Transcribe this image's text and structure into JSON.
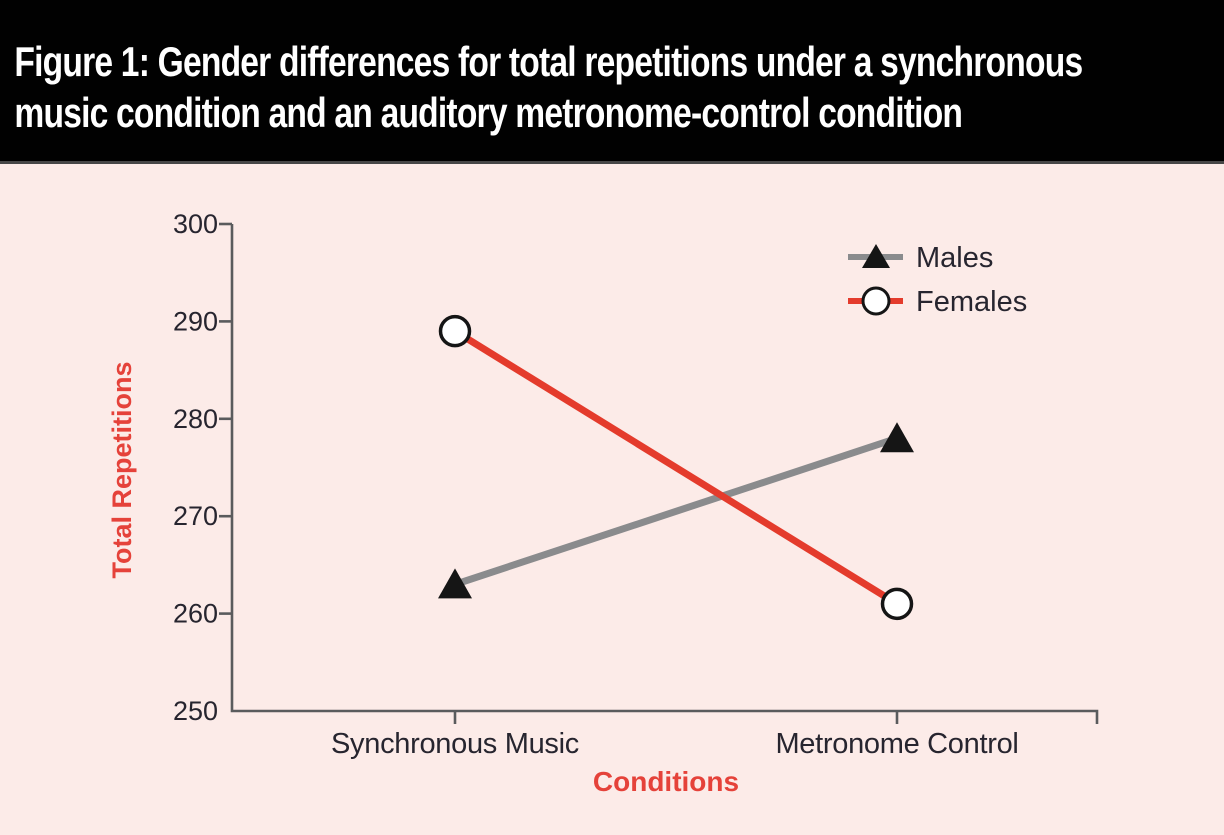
{
  "header": {
    "title_lines": [
      "Figure 1: Gender differences for total repetitions under a synchronous",
      "music condition and an auditory metronome-control condition"
    ]
  },
  "chart_data": {
    "type": "line",
    "title": "Figure 1: Gender differences for total repetitions under a synchronous music condition and an auditory metronome-control condition",
    "categories": [
      "Synchronous Music",
      "Metronome Control"
    ],
    "series": [
      {
        "name": "Males",
        "values": [
          263,
          278
        ],
        "line_color": "#8a8b8d",
        "marker": "triangle",
        "marker_fill": "#151515",
        "marker_stroke": "#151515"
      },
      {
        "name": "Females",
        "values": [
          289,
          261
        ],
        "line_color": "#e43b2c",
        "marker": "circle",
        "marker_fill": "#ffffff",
        "marker_stroke": "#151515"
      }
    ],
    "xlabel": "Conditions",
    "ylabel": "Total Repetitions",
    "ylim": [
      250,
      300
    ],
    "yticks": [
      250,
      260,
      270,
      280,
      290,
      300
    ],
    "grid": false,
    "legend_position": "top-right"
  },
  "colors": {
    "background": "#fcebe8",
    "banner_bg": "#010101",
    "banner_text": "#ffffff",
    "accent_red": "#e5423a",
    "axis": "#5a5b5d",
    "tick_label": "#27252f"
  }
}
